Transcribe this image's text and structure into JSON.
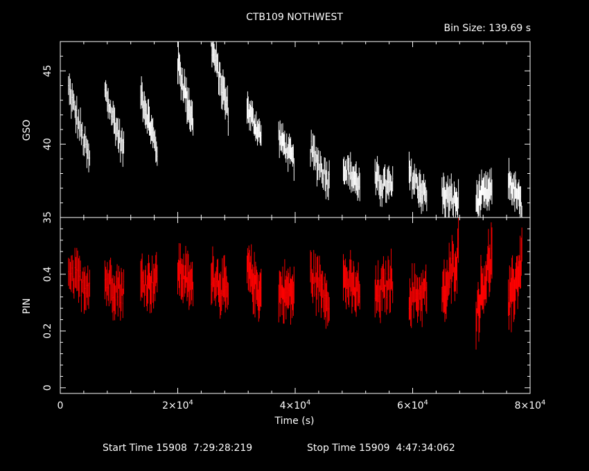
{
  "title": "CTB109 NOTHWEST",
  "bin_size_label": "Bin Size: 139.69 s",
  "footer": {
    "start_label": "Start Time 15908  7:29:28:219",
    "stop_label": "Stop Time 15909  4:47:34:062"
  },
  "colors": {
    "background": "#000000",
    "axes": "#ffffff",
    "gso_series": "#ffffff",
    "pin_series": "#ff0000"
  },
  "chart_data": [
    {
      "type": "scatter",
      "panel": "top",
      "ylabel": "GSO",
      "xlim": [
        0,
        80000
      ],
      "ylim": [
        35,
        47
      ],
      "yticks": [
        {
          "v": 35,
          "label": "35"
        },
        {
          "v": 40,
          "label": "40"
        },
        {
          "v": 45,
          "label": "45"
        }
      ],
      "series": [
        {
          "color": "#ffffff",
          "segments": [
            {
              "x0": 1400,
              "x1": 5000,
              "y0": 43.8,
              "y1": 38.8,
              "err": 0.9
            },
            {
              "x0": 7600,
              "x1": 10800,
              "y0": 43.6,
              "y1": 39.5,
              "err": 0.9
            },
            {
              "x0": 13700,
              "x1": 16500,
              "y0": 43.6,
              "y1": 39.5,
              "err": 0.9
            },
            {
              "x0": 20000,
              "x1": 22600,
              "y0": 45.5,
              "y1": 41.5,
              "err": 1.0
            },
            {
              "x0": 25700,
              "x1": 28600,
              "y0": 46.8,
              "y1": 42.2,
              "err": 1.0
            },
            {
              "x0": 31800,
              "x1": 34200,
              "y0": 42.5,
              "y1": 40.5,
              "err": 0.8
            },
            {
              "x0": 37200,
              "x1": 39800,
              "y0": 40.6,
              "y1": 38.8,
              "err": 0.8
            },
            {
              "x0": 42600,
              "x1": 45800,
              "y0": 39.6,
              "y1": 37.5,
              "err": 1.0
            },
            {
              "x0": 48200,
              "x1": 51000,
              "y0": 38.6,
              "y1": 37.2,
              "err": 0.9
            },
            {
              "x0": 53600,
              "x1": 56600,
              "y0": 37.5,
              "y1": 37.0,
              "err": 1.0
            },
            {
              "x0": 59400,
              "x1": 62400,
              "y0": 38.0,
              "y1": 36.4,
              "err": 1.0
            },
            {
              "x0": 65000,
              "x1": 67800,
              "y0": 36.6,
              "y1": 36.0,
              "err": 1.0
            },
            {
              "x0": 70800,
              "x1": 73500,
              "y0": 36.2,
              "y1": 36.8,
              "err": 1.0
            },
            {
              "x0": 76300,
              "x1": 78600,
              "y0": 37.6,
              "y1": 35.8,
              "err": 0.9
            }
          ]
        }
      ]
    },
    {
      "type": "scatter",
      "panel": "bottom",
      "ylabel": "PIN",
      "xlabel": "Time (s)",
      "xlim": [
        0,
        80000
      ],
      "ylim": [
        -0.02,
        0.6
      ],
      "yticks": [
        {
          "v": 0,
          "label": "0"
        },
        {
          "v": 0.2,
          "label": "0.2"
        },
        {
          "v": 0.4,
          "label": "0.4"
        }
      ],
      "xticks": [
        {
          "v": 0,
          "label": "0",
          "exp": ""
        },
        {
          "v": 20000,
          "label": "2×10",
          "exp": "4"
        },
        {
          "v": 40000,
          "label": "4×10",
          "exp": "4"
        },
        {
          "v": 60000,
          "label": "6×10",
          "exp": "4"
        },
        {
          "v": 80000,
          "label": "8×10",
          "exp": "4"
        }
      ],
      "series": [
        {
          "color": "#ff0000",
          "segments": [
            {
              "x0": 1400,
              "x1": 5000,
              "y0": 0.38,
              "y1": 0.37,
              "err": 0.07
            },
            {
              "x0": 7600,
              "x1": 10800,
              "y0": 0.38,
              "y1": 0.34,
              "err": 0.07
            },
            {
              "x0": 13700,
              "x1": 16500,
              "y0": 0.37,
              "y1": 0.38,
              "err": 0.07
            },
            {
              "x0": 20000,
              "x1": 22600,
              "y0": 0.42,
              "y1": 0.35,
              "err": 0.07
            },
            {
              "x0": 25700,
              "x1": 28600,
              "y0": 0.41,
              "y1": 0.32,
              "err": 0.07
            },
            {
              "x0": 31800,
              "x1": 34200,
              "y0": 0.41,
              "y1": 0.33,
              "err": 0.07
            },
            {
              "x0": 37200,
              "x1": 39800,
              "y0": 0.34,
              "y1": 0.33,
              "err": 0.07
            },
            {
              "x0": 42600,
              "x1": 45800,
              "y0": 0.4,
              "y1": 0.32,
              "err": 0.07
            },
            {
              "x0": 48200,
              "x1": 51000,
              "y0": 0.38,
              "y1": 0.33,
              "err": 0.07
            },
            {
              "x0": 53600,
              "x1": 56600,
              "y0": 0.32,
              "y1": 0.38,
              "err": 0.07
            },
            {
              "x0": 59400,
              "x1": 62400,
              "y0": 0.32,
              "y1": 0.34,
              "err": 0.07
            },
            {
              "x0": 65000,
              "x1": 67800,
              "y0": 0.3,
              "y1": 0.48,
              "err": 0.08
            },
            {
              "x0": 70800,
              "x1": 73500,
              "y0": 0.27,
              "y1": 0.47,
              "err": 0.08
            },
            {
              "x0": 76300,
              "x1": 78600,
              "y0": 0.28,
              "y1": 0.45,
              "err": 0.08
            }
          ]
        }
      ]
    }
  ]
}
